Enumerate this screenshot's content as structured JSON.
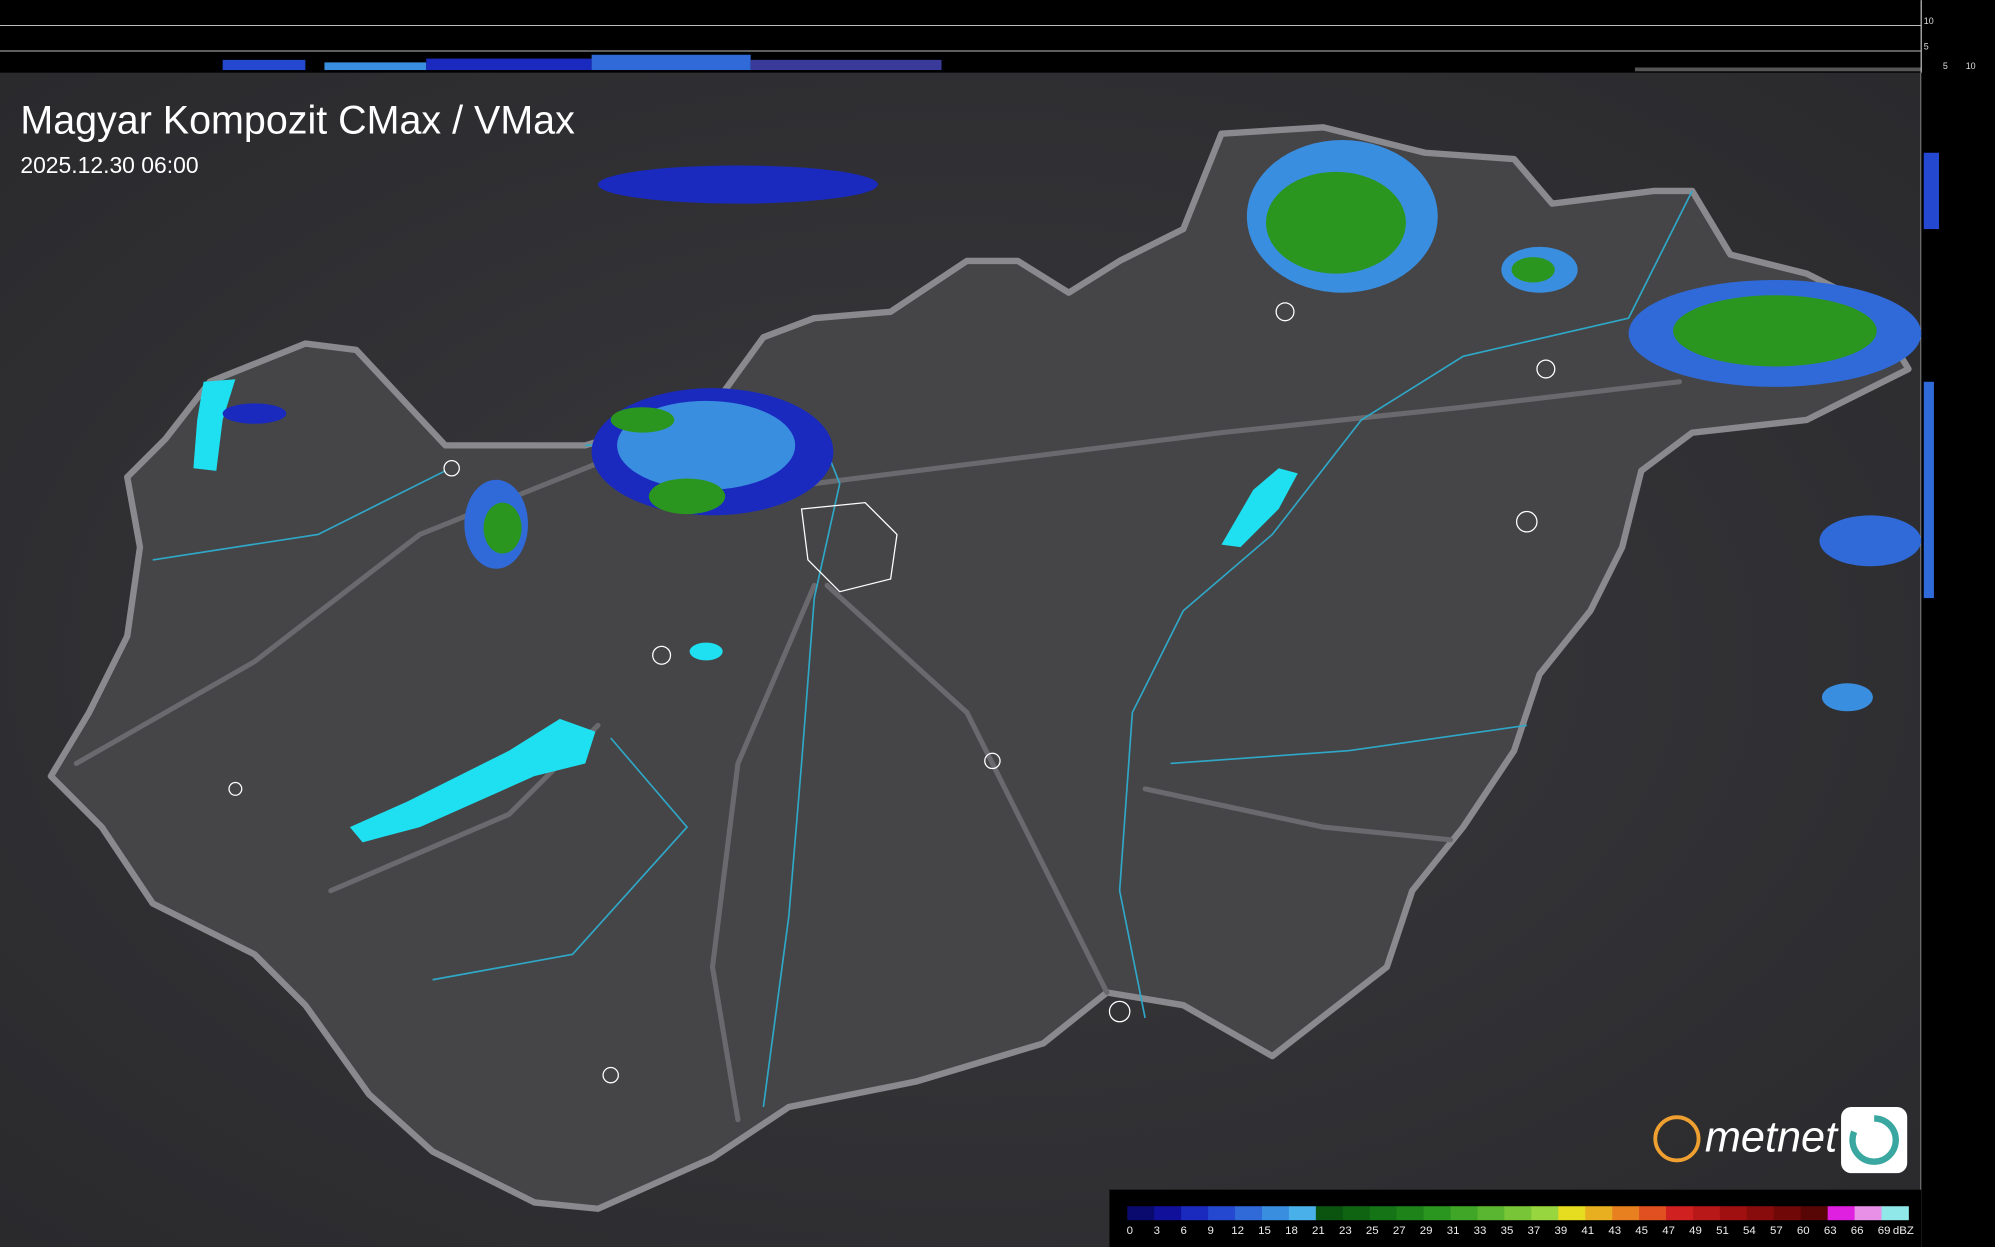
{
  "header": {
    "title": "Magyar Kompozit CMax / VMax",
    "timestamp": "2025.12.30 06:00"
  },
  "profile": {
    "y_ticks": [
      "10",
      "5"
    ],
    "x_ticks": [
      "5",
      "10"
    ]
  },
  "logo": {
    "text": "metnet"
  },
  "legend": {
    "levels": [
      0,
      3,
      6,
      9,
      12,
      15,
      18,
      21,
      23,
      25,
      27,
      29,
      31,
      33,
      35,
      37,
      39,
      41,
      43,
      45,
      47,
      49,
      51,
      54,
      57,
      60,
      63,
      66,
      69
    ],
    "colors": [
      "#0a0a6e",
      "#10109a",
      "#1a2abf",
      "#2448cf",
      "#2f6ad8",
      "#3a8ee0",
      "#4ab0ea",
      "#0a5410",
      "#0f6412",
      "#157415",
      "#1e841a",
      "#2a9620",
      "#40a628",
      "#5ab630",
      "#78c638",
      "#98d640",
      "#e6dc20",
      "#e8b020",
      "#e88020",
      "#e05020",
      "#d02020",
      "#b81818",
      "#a01010",
      "#880c0c",
      "#700808",
      "#580505",
      "#e020e0",
      "#e890e8",
      "#90e8e8"
    ],
    "unit": "dBZ"
  }
}
